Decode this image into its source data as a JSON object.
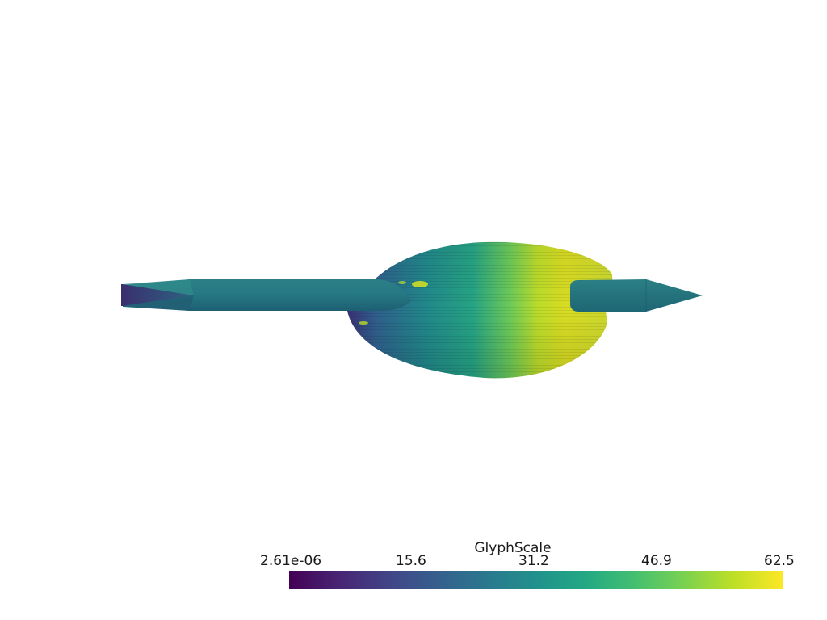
{
  "scene": {
    "background": "#ffffff",
    "colormap": "viridis",
    "colormap_colors": [
      "#440154",
      "#482475",
      "#414487",
      "#355f8d",
      "#2a788e",
      "#21918c",
      "#22a884",
      "#44bf70",
      "#7ad151",
      "#bddf26",
      "#fde725"
    ]
  },
  "colorbar": {
    "title": "GlyphScale",
    "ticks": [
      "2.61e-06",
      "15.6",
      "31.2",
      "46.9",
      "62.5"
    ]
  }
}
